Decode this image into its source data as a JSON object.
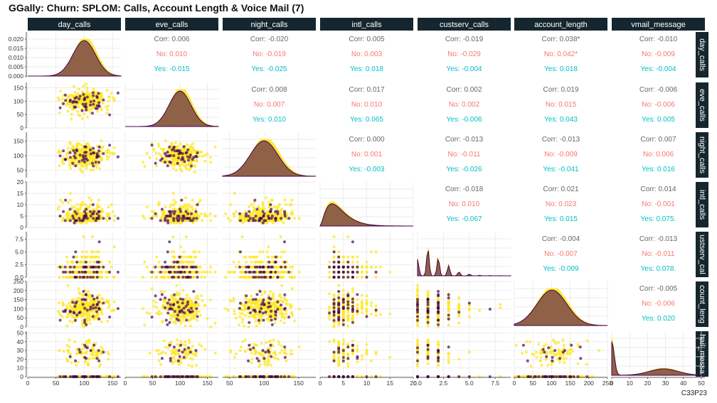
{
  "title": "GGally: Churn: SPLOM: Calls, Account Length & Voice Mail (7)",
  "caption": "C33P23",
  "colors": {
    "no": "#440154",
    "yes": "#FDE725",
    "corr_all": "#666666",
    "corr_no": "#F8766D",
    "corr_yes": "#00BFC4",
    "strip_bg": "#15262e",
    "grid": "#e5e5e5",
    "density_fill": "#7b4a4a"
  },
  "chart_data": {
    "type": "scatter",
    "subtype": "scatterplot-matrix",
    "variables": [
      "day_calls",
      "eve_calls",
      "night_calls",
      "intl_calls",
      "custserv_calls",
      "account_length",
      "vmail_message"
    ],
    "row_strip_labels": [
      "day_calls",
      "eve_calls",
      "night_calls",
      "intl_calls",
      "ustserv_cal",
      "count_leng",
      "hail_messa"
    ],
    "groups": [
      "No",
      "Yes"
    ],
    "diag_type": "density",
    "diag_ylim": [
      0,
      0.022
    ],
    "diag_yticks": [
      "0.000",
      "0.005",
      "0.010",
      "0.015",
      "0.020"
    ],
    "x_axes": {
      "day_calls": {
        "range": [
          0,
          165
        ],
        "ticks": [
          "0",
          "50",
          "100",
          "150"
        ]
      },
      "eve_calls": {
        "range": [
          0,
          170
        ],
        "ticks": [
          "0",
          "50",
          "100",
          "150"
        ]
      },
      "night_calls": {
        "range": [
          40,
          175
        ],
        "ticks": [
          "50",
          "100",
          "150"
        ]
      },
      "intl_calls": {
        "range": [
          0,
          20
        ],
        "ticks": [
          "0",
          "5",
          "10",
          "15",
          "20"
        ]
      },
      "custserv_calls": {
        "range": [
          0,
          9
        ],
        "ticks": [
          "0.0",
          "2.5",
          "5.0",
          "7.5"
        ]
      },
      "account_length": {
        "range": [
          0,
          250
        ],
        "ticks": [
          "0",
          "50",
          "100",
          "150",
          "200",
          "250"
        ]
      },
      "vmail_message": {
        "range": [
          0,
          52
        ],
        "ticks": [
          "0",
          "10",
          "20",
          "30",
          "40",
          "50"
        ]
      }
    },
    "y_axes": {
      "eve_calls": {
        "range": [
          0,
          170
        ],
        "ticks": [
          "0",
          "50",
          "100",
          "150"
        ]
      },
      "night_calls": {
        "range": [
          25,
          180
        ],
        "ticks": [
          "50",
          "100",
          "150"
        ]
      },
      "intl_calls": {
        "range": [
          0,
          20
        ],
        "ticks": [
          "0",
          "5",
          "10",
          "15",
          "20"
        ]
      },
      "custserv_calls": {
        "range": [
          0,
          9
        ],
        "ticks": [
          "0.0",
          "2.5",
          "5.0",
          "7.5"
        ]
      },
      "account_length": {
        "range": [
          0,
          250
        ],
        "ticks": [
          "0",
          "50",
          "100",
          "150",
          "200",
          "250"
        ]
      },
      "vmail_message": {
        "range": [
          0,
          52
        ],
        "ticks": [
          "0",
          "10",
          "20",
          "30",
          "40",
          "50"
        ]
      }
    },
    "correlations": [
      {
        "row": 0,
        "col": 1,
        "all": "Corr: 0.006",
        "no": "No: 0.010",
        "yes": "Yes: -0.015"
      },
      {
        "row": 0,
        "col": 2,
        "all": "Corr: -0.020",
        "no": "No: -0.019",
        "yes": "Yes: -0.025"
      },
      {
        "row": 0,
        "col": 3,
        "all": "Corr: 0.005",
        "no": "No: 0.003",
        "yes": "Yes: 0.018"
      },
      {
        "row": 0,
        "col": 4,
        "all": "Corr: -0.019",
        "no": "No: -0.029",
        "yes": "Yes: -0.004"
      },
      {
        "row": 0,
        "col": 5,
        "all": "Corr: 0.038*",
        "no": "No: 0.042*",
        "yes": "Yes: 0.018"
      },
      {
        "row": 0,
        "col": 6,
        "all": "Corr: -0.010",
        "no": "No: -0.009",
        "yes": "Yes: -0.004"
      },
      {
        "row": 1,
        "col": 2,
        "all": "Corr: 0.008",
        "no": "No: 0.007",
        "yes": "Yes: 0.010"
      },
      {
        "row": 1,
        "col": 3,
        "all": "Corr: 0.017",
        "no": "No: 0.010",
        "yes": "Yes: 0.065"
      },
      {
        "row": 1,
        "col": 4,
        "all": "Corr: 0.002",
        "no": "No: 0.002",
        "yes": "Yes: -0.006"
      },
      {
        "row": 1,
        "col": 5,
        "all": "Corr: 0.019",
        "no": "No: 0.015",
        "yes": "Yes: 0.043"
      },
      {
        "row": 1,
        "col": 6,
        "all": "Corr: -0.006",
        "no": "No: -0.006",
        "yes": "Yes: 0.005"
      },
      {
        "row": 2,
        "col": 3,
        "all": "Corr: 0.000",
        "no": "No: 0.001",
        "yes": "Yes: -0.003"
      },
      {
        "row": 2,
        "col": 4,
        "all": "Corr: -0.013",
        "no": "No: -0.011",
        "yes": "Yes: -0.026"
      },
      {
        "row": 2,
        "col": 5,
        "all": "Corr: -0.013",
        "no": "No: -0.009",
        "yes": "Yes: -0.041"
      },
      {
        "row": 2,
        "col": 6,
        "all": "Corr: 0.007",
        "no": "No: 0.006",
        "yes": "Yes: 0.016"
      },
      {
        "row": 3,
        "col": 4,
        "all": "Corr: -0.018",
        "no": "No: 0.010",
        "yes": "Yes: -0.067"
      },
      {
        "row": 3,
        "col": 5,
        "all": "Corr: 0.021",
        "no": "No: 0.023",
        "yes": "Yes: 0.015"
      },
      {
        "row": 3,
        "col": 6,
        "all": "Corr: 0.014",
        "no": "No: -0.001",
        "yes": "Yes: 0.075."
      },
      {
        "row": 4,
        "col": 5,
        "all": "Corr: -0.004",
        "no": "No: -0.007",
        "yes": "Yes: -0.009"
      },
      {
        "row": 4,
        "col": 6,
        "all": "Corr: -0.013",
        "no": "No: -0.011",
        "yes": "Yes: 0.078."
      },
      {
        "row": 5,
        "col": 6,
        "all": "Corr: -0.005",
        "no": "No: -0.006",
        "yes": "Yes: 0.020"
      }
    ],
    "distributions": {
      "day_calls": {
        "type": "normal",
        "mean": 100,
        "sd": 20
      },
      "eve_calls": {
        "type": "normal",
        "mean": 100,
        "sd": 20
      },
      "night_calls": {
        "type": "normal",
        "mean": 100,
        "sd": 20
      },
      "intl_calls": {
        "type": "skewed",
        "mode": 3
      },
      "custserv_calls": {
        "type": "discrete",
        "values": [
          0,
          1,
          2,
          3,
          4,
          5,
          6,
          7,
          8,
          9
        ]
      },
      "account_length": {
        "type": "normal",
        "mean": 101,
        "sd": 40
      },
      "vmail_message": {
        "type": "zero-inflated",
        "nonzero_mean": 29,
        "nonzero_sd": 8
      }
    }
  }
}
